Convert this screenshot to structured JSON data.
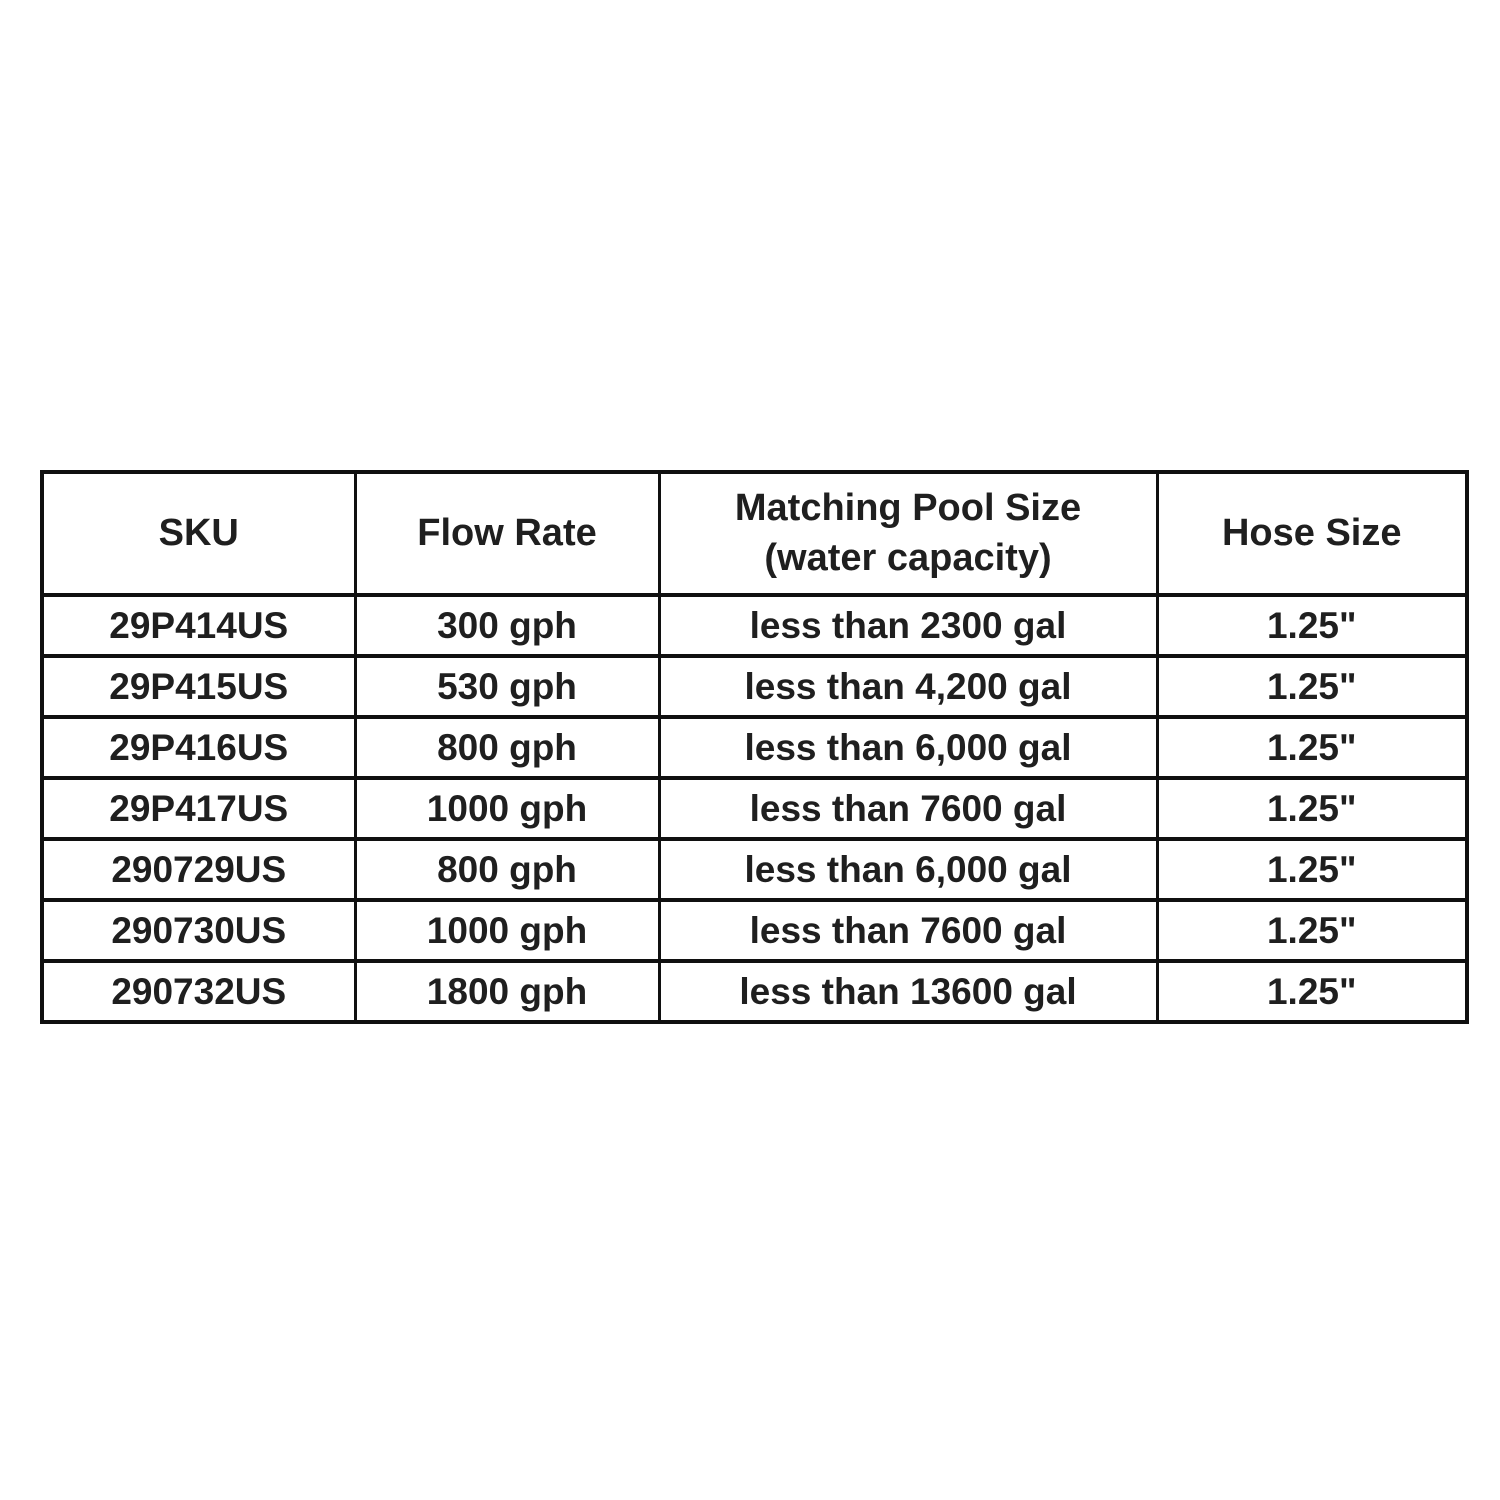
{
  "colors": {
    "background": "#ffffff",
    "border": "#101010",
    "text": "#1f1f1f"
  },
  "table": {
    "headers": [
      {
        "line1": "SKU"
      },
      {
        "line1": "Flow Rate"
      },
      {
        "line1": "Matching Pool Size",
        "line2": "(water capacity)"
      },
      {
        "line1": "Hose Size"
      }
    ],
    "rows": [
      [
        "29P414US",
        "300 gph",
        "less than 2300 gal",
        "1.25\""
      ],
      [
        "29P415US",
        "530 gph",
        "less than 4,200 gal",
        "1.25\""
      ],
      [
        "29P416US",
        "800 gph",
        "less than 6,000 gal",
        "1.25\""
      ],
      [
        "29P417US",
        "1000 gph",
        "less than 7600 gal",
        "1.25\""
      ],
      [
        "290729US",
        "800 gph",
        "less than 6,000 gal",
        "1.25\""
      ],
      [
        "290730US",
        "1000 gph",
        "less than 7600 gal",
        "1.25\""
      ],
      [
        "290732US",
        "1800 gph",
        "less than 13600 gal",
        "1.25\""
      ]
    ]
  }
}
